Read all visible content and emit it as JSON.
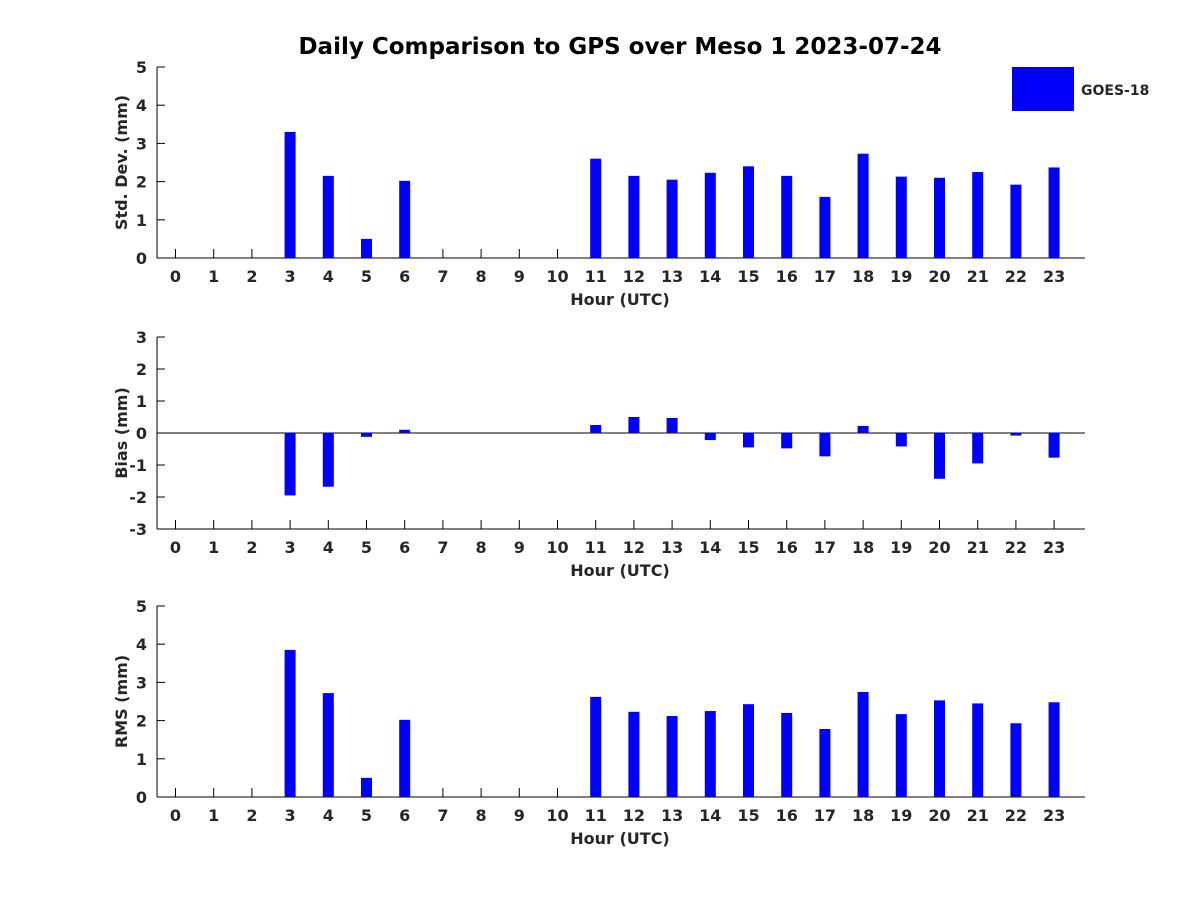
{
  "chart_data": {
    "title": "Daily Comparison to GPS over Meso 1 2023-07-24",
    "legend": {
      "label": "GOES-18",
      "position": "top-right"
    },
    "bar_color": "#0000ff",
    "xlabel": "Hour (UTC)",
    "categories": [
      "0",
      "1",
      "2",
      "3",
      "4",
      "5",
      "6",
      "7",
      "8",
      "9",
      "10",
      "11",
      "12",
      "13",
      "14",
      "15",
      "16",
      "17",
      "18",
      "19",
      "20",
      "21",
      "22",
      "23"
    ],
    "panels": [
      {
        "type": "bar",
        "ylabel": "Std. Dev. (mm)",
        "ylim": [
          0,
          5
        ],
        "yticks": [
          "0",
          "1",
          "2",
          "3",
          "4",
          "5"
        ],
        "zero_line": false,
        "values": [
          null,
          null,
          null,
          3.3,
          2.15,
          0.5,
          2.02,
          null,
          null,
          null,
          null,
          2.6,
          2.15,
          2.05,
          2.23,
          2.4,
          2.15,
          1.6,
          2.73,
          2.13,
          2.1,
          2.25,
          1.92,
          2.37
        ]
      },
      {
        "type": "bar",
        "ylabel": "Bias (mm)",
        "ylim": [
          -3,
          3
        ],
        "yticks": [
          "-3",
          "-2",
          "-1",
          "0",
          "1",
          "2",
          "3"
        ],
        "zero_line": true,
        "values": [
          null,
          null,
          null,
          -1.95,
          -1.68,
          -0.12,
          0.1,
          null,
          null,
          null,
          null,
          0.25,
          0.5,
          0.47,
          -0.22,
          -0.45,
          -0.48,
          -0.73,
          0.22,
          -0.42,
          -1.43,
          -0.95,
          -0.08,
          -0.77
        ]
      },
      {
        "type": "bar",
        "ylabel": "RMS (mm)",
        "ylim": [
          0,
          5
        ],
        "yticks": [
          "0",
          "1",
          "2",
          "3",
          "4",
          "5"
        ],
        "zero_line": false,
        "values": [
          null,
          null,
          null,
          3.85,
          2.72,
          0.5,
          2.02,
          null,
          null,
          null,
          null,
          2.62,
          2.23,
          2.12,
          2.25,
          2.43,
          2.2,
          1.78,
          2.75,
          2.17,
          2.53,
          2.45,
          1.93,
          2.48
        ]
      }
    ]
  }
}
